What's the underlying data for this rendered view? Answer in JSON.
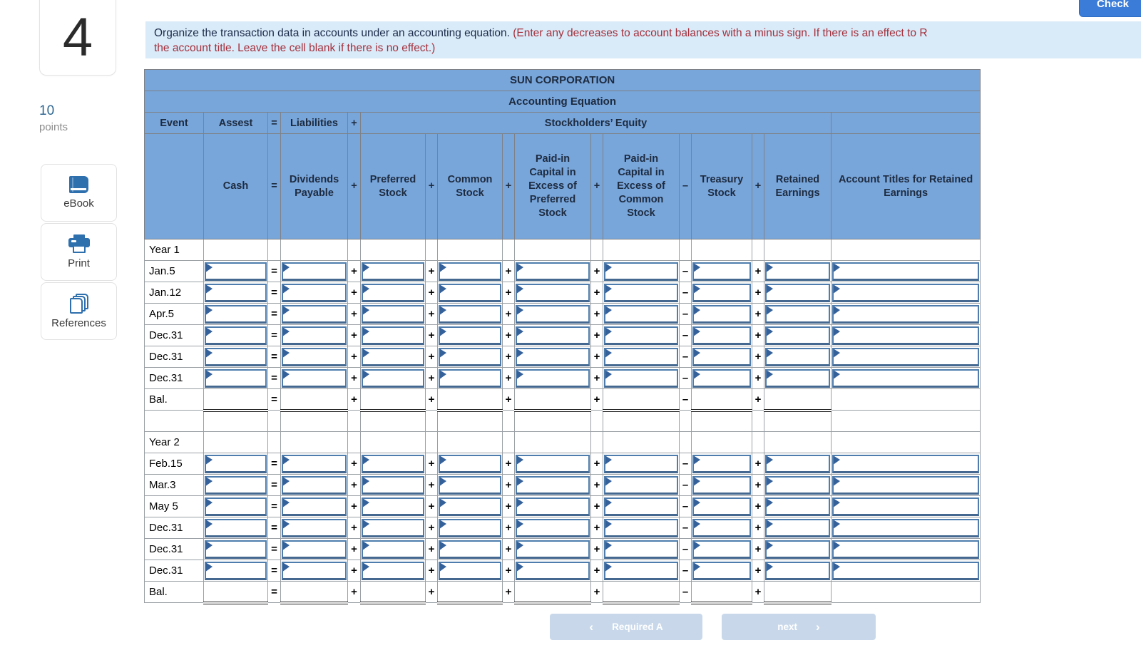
{
  "header": {
    "check_label": "Check"
  },
  "question": {
    "number": "4",
    "points_value": "10",
    "points_label": "points"
  },
  "sidebar": {
    "items": [
      {
        "label": "eBook",
        "icon": "book-icon"
      },
      {
        "label": "Print",
        "icon": "printer-icon"
      },
      {
        "label": "References",
        "icon": "pages-icon"
      }
    ]
  },
  "instructions": {
    "line1_black": "Organize the transaction data in accounts under an accounting equation. ",
    "line1_red": "(Enter any decreases to account balances with a minus sign. If there is an effect to R",
    "line2_red": "the account title. Leave the cell blank if there is no effect.)"
  },
  "table": {
    "title": "SUN CORPORATION",
    "subtitle": "Accounting Equation",
    "header3": {
      "event": "Event",
      "assets": "Assest",
      "liabilities": "Liabilities",
      "equity": "Stockholders’ Equity"
    },
    "operators": [
      "=",
      "+",
      "+",
      "+",
      "+",
      "–",
      "+"
    ],
    "columns": [
      "Cash",
      "Dividends Payable",
      "Preferred Stock",
      "Common Stock",
      "Paid-in Capital in Excess of Preferred Stock",
      "Paid-in Capital in Excess of Common Stock",
      "Treasury Stock",
      "Retained Earnings"
    ],
    "titles_col": "Account Titles for Retained Earnings",
    "rows": [
      {
        "label": "Year 1",
        "type": "section"
      },
      {
        "label": "Jan.5",
        "type": "input"
      },
      {
        "label": "Jan.12",
        "type": "input"
      },
      {
        "label": "Apr.5",
        "type": "input"
      },
      {
        "label": "Dec.31",
        "type": "input"
      },
      {
        "label": "Dec.31",
        "type": "input"
      },
      {
        "label": "Dec.31",
        "type": "input"
      },
      {
        "label": "Bal.",
        "type": "balance"
      },
      {
        "label": "",
        "type": "spacer"
      },
      {
        "label": "Year 2",
        "type": "section"
      },
      {
        "label": "Feb.15",
        "type": "input"
      },
      {
        "label": "Mar.3",
        "type": "input"
      },
      {
        "label": "May 5",
        "type": "input"
      },
      {
        "label": "Dec.31",
        "type": "input"
      },
      {
        "label": "Dec.31",
        "type": "input"
      },
      {
        "label": "Dec.31",
        "type": "input"
      },
      {
        "label": "Bal.",
        "type": "balance"
      }
    ]
  },
  "footer": {
    "required_label": "Required A",
    "next_label": "next"
  }
}
